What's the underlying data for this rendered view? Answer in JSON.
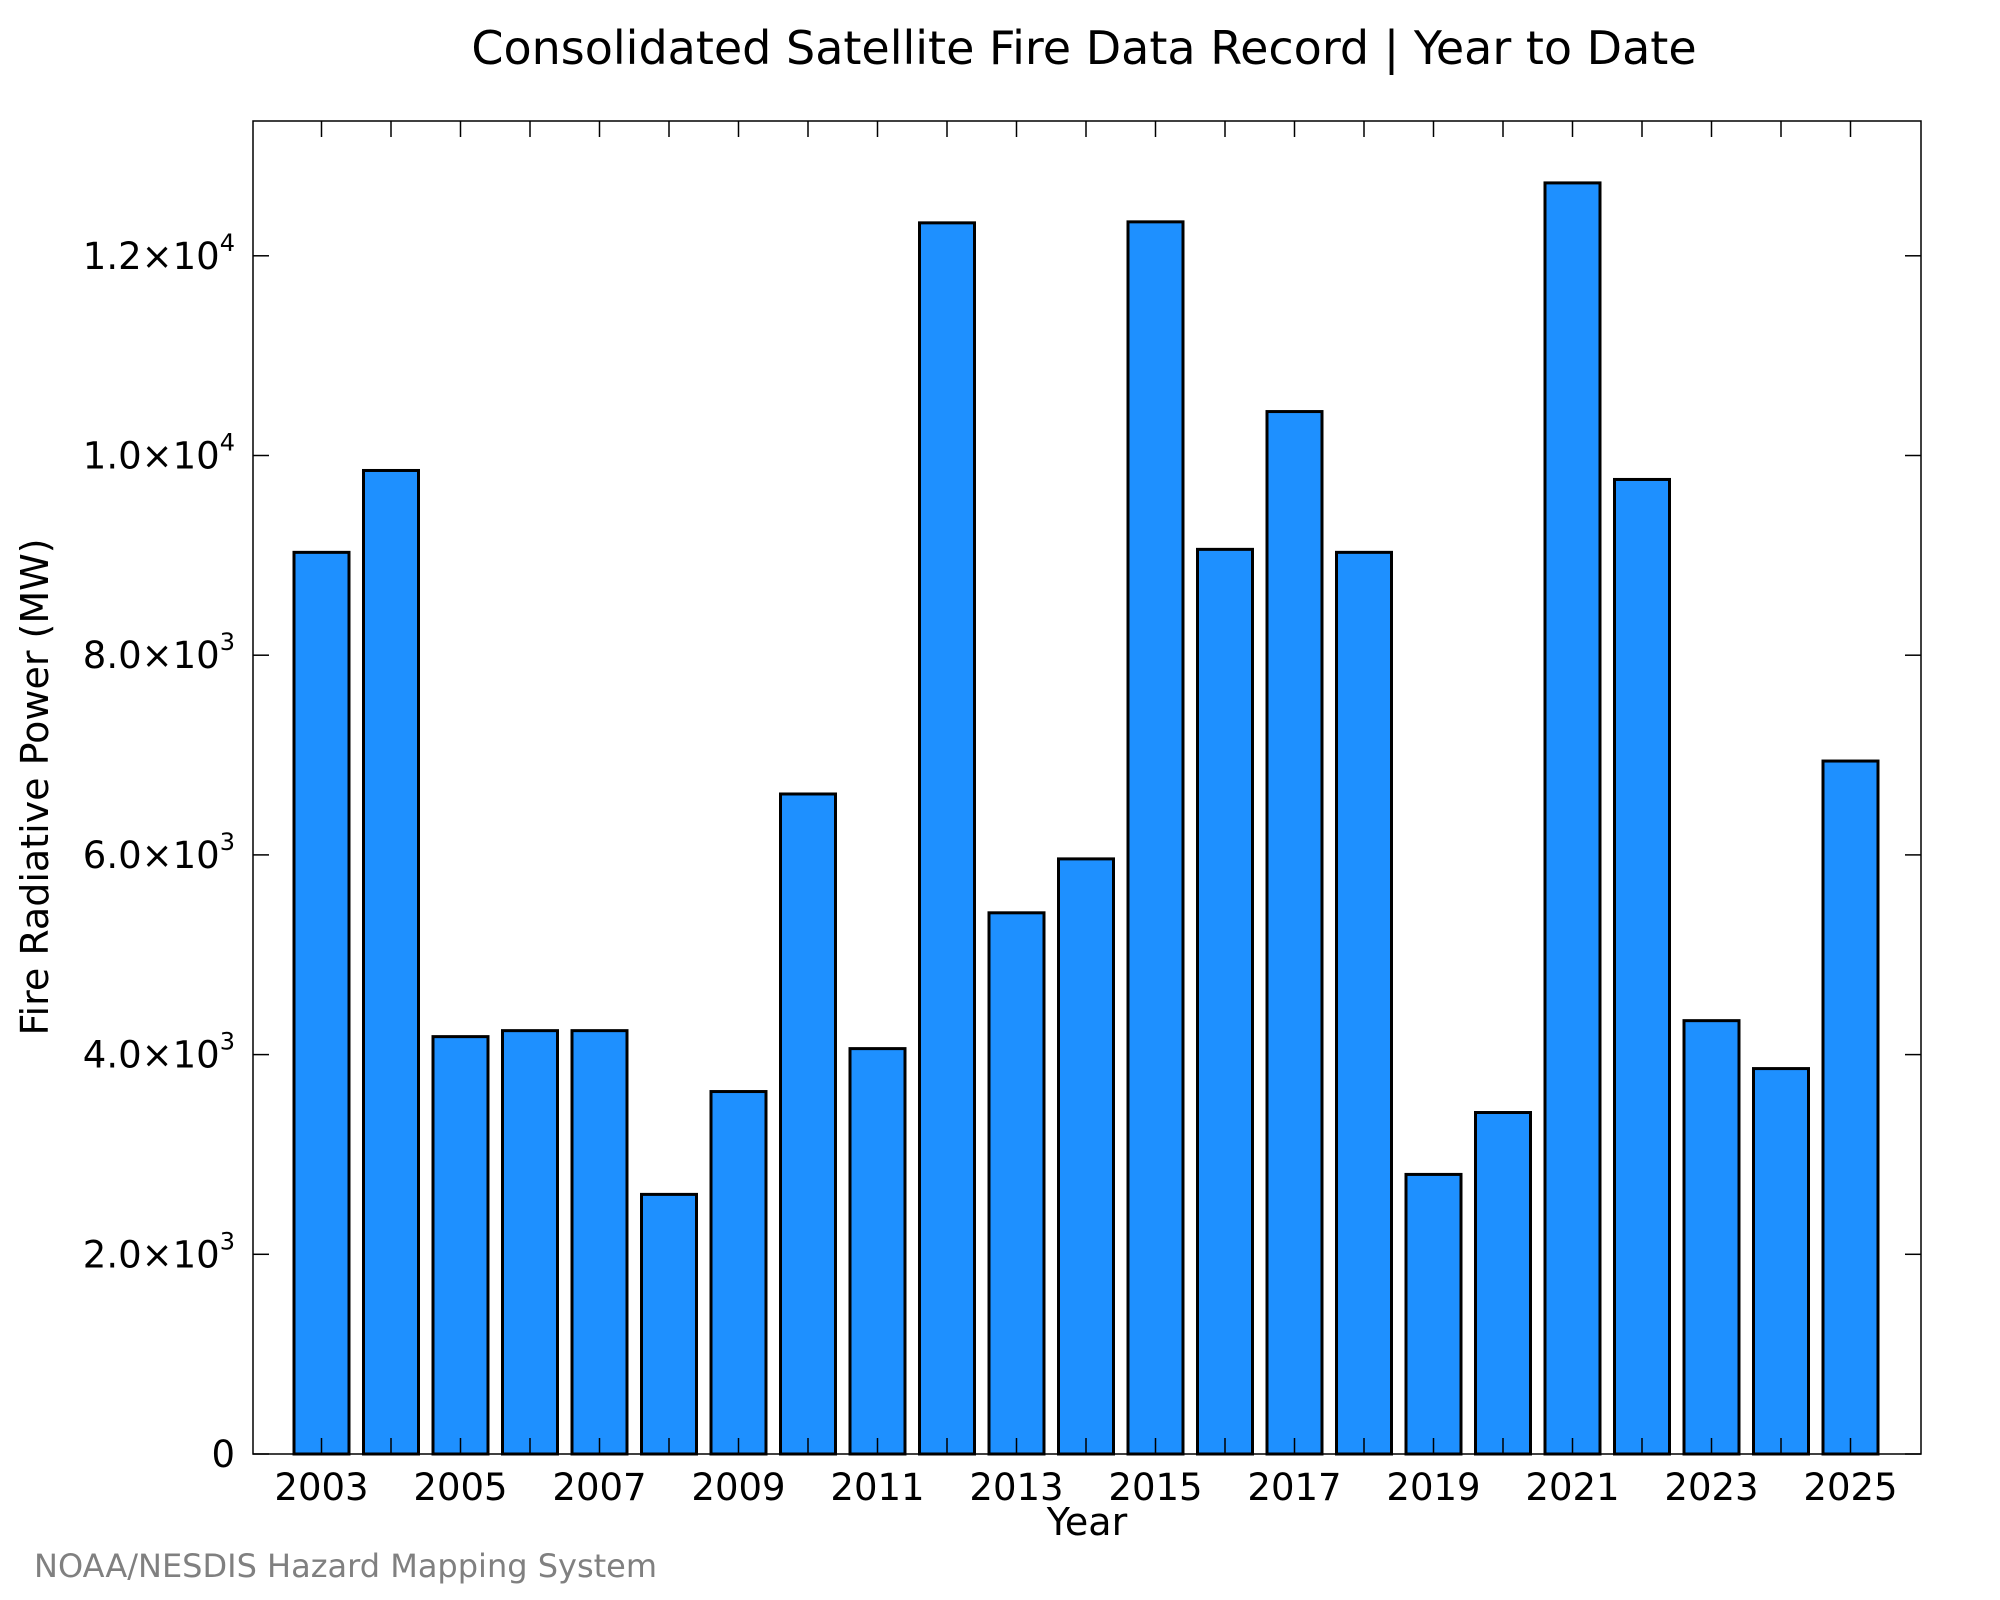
{
  "chart_data": {
    "type": "bar",
    "title": "Consolidated Satellite Fire Data Record | Year to Date",
    "xlabel": "Year",
    "ylabel": "Fire Radiative Power (MW)",
    "credit": "NOAA/NESDIS Hazard Mapping System",
    "categories": [
      "2003",
      "2004",
      "2005",
      "2006",
      "2007",
      "2008",
      "2009",
      "2010",
      "2011",
      "2012",
      "2013",
      "2014",
      "2015",
      "2016",
      "2017",
      "2018",
      "2019",
      "2020",
      "2021",
      "2022",
      "2023",
      "2024",
      "2025"
    ],
    "values": [
      9030,
      9850,
      4180,
      4240,
      4240,
      2600,
      3630,
      6610,
      4060,
      12330,
      5420,
      5960,
      12340,
      9060,
      10440,
      9030,
      2800,
      3420,
      12730,
      9760,
      4340,
      3860,
      6940
    ],
    "x_tick_labels": [
      "2003",
      "2005",
      "2007",
      "2009",
      "2011",
      "2013",
      "2015",
      "2017",
      "2019",
      "2021",
      "2023",
      "2025"
    ],
    "y_ticks": [
      {
        "value": 0,
        "mantissa": "0",
        "exponent": ""
      },
      {
        "value": 2000,
        "mantissa": "2.0×10",
        "exponent": "3"
      },
      {
        "value": 4000,
        "mantissa": "4.0×10",
        "exponent": "3"
      },
      {
        "value": 6000,
        "mantissa": "6.0×10",
        "exponent": "3"
      },
      {
        "value": 8000,
        "mantissa": "8.0×10",
        "exponent": "3"
      },
      {
        "value": 10000,
        "mantissa": "1.0×10",
        "exponent": "4"
      },
      {
        "value": 12000,
        "mantissa": "1.2×10",
        "exponent": "4"
      }
    ],
    "ylim": [
      0,
      13350
    ],
    "bar_color": "#1e90ff",
    "grid": false,
    "legend": "none"
  }
}
